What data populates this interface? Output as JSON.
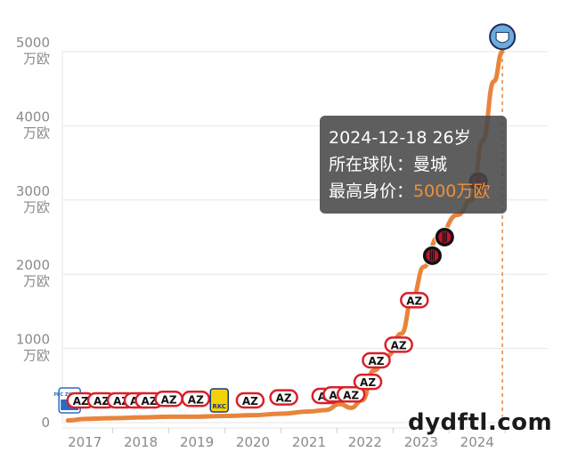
{
  "chart_data": {
    "type": "line",
    "title": "",
    "xlabel": "",
    "ylabel": "",
    "y_ticks": [
      {
        "value": 0,
        "label": "0",
        "unit": ""
      },
      {
        "value": 1000,
        "label": "1000",
        "unit": "万欧"
      },
      {
        "value": 2000,
        "label": "2000",
        "unit": "万欧"
      },
      {
        "value": 3000,
        "label": "3000",
        "unit": "万欧"
      },
      {
        "value": 4000,
        "label": "4000",
        "unit": "万欧"
      },
      {
        "value": 5000,
        "label": "5000",
        "unit": "万欧"
      }
    ],
    "ylim": [
      0,
      5000
    ],
    "x_ticks": [
      "2017",
      "2018",
      "2019",
      "2020",
      "2021",
      "2022",
      "2023",
      "2024"
    ],
    "xlim": [
      2016.6,
      2025.1
    ],
    "grid": true,
    "line_color": "#e8843c",
    "series": [
      {
        "values_unit": "万欧",
        "points": [
          {
            "x": 2016.7,
            "y": 30
          },
          {
            "x": 2017.0,
            "y": 50
          },
          {
            "x": 2017.5,
            "y": 60
          },
          {
            "x": 2018.0,
            "y": 70
          },
          {
            "x": 2018.5,
            "y": 80
          },
          {
            "x": 2019.0,
            "y": 80
          },
          {
            "x": 2019.5,
            "y": 90
          },
          {
            "x": 2020.0,
            "y": 100
          },
          {
            "x": 2020.5,
            "y": 120
          },
          {
            "x": 2021.0,
            "y": 150
          },
          {
            "x": 2021.3,
            "y": 170
          },
          {
            "x": 2021.55,
            "y": 250
          },
          {
            "x": 2021.75,
            "y": 200
          },
          {
            "x": 2021.95,
            "y": 300
          },
          {
            "x": 2022.15,
            "y": 700
          },
          {
            "x": 2022.4,
            "y": 900
          },
          {
            "x": 2022.65,
            "y": 1200
          },
          {
            "x": 2022.85,
            "y": 1700
          },
          {
            "x": 2023.05,
            "y": 2100
          },
          {
            "x": 2023.3,
            "y": 2500
          },
          {
            "x": 2023.65,
            "y": 2800
          },
          {
            "x": 2023.9,
            "y": 3000
          },
          {
            "x": 2024.1,
            "y": 3800
          },
          {
            "x": 2024.3,
            "y": 4600
          },
          {
            "x": 2024.45,
            "y": 5000
          }
        ]
      }
    ],
    "club_markers": [
      {
        "x": 2016.73,
        "y": 300,
        "icon": "pec-zwolle-badge-icon",
        "label": "PEC ZWOLLE"
      },
      {
        "x": 2016.93,
        "y": 300,
        "icon": "az-badge-icon",
        "label": "AZ"
      },
      {
        "x": 2017.3,
        "y": 300,
        "icon": "az-badge-icon",
        "label": "AZ"
      },
      {
        "x": 2017.65,
        "y": 300,
        "icon": "az-badge-icon",
        "label": "AZ"
      },
      {
        "x": 2017.95,
        "y": 300,
        "icon": "az-badge-icon",
        "label": "AZ"
      },
      {
        "x": 2018.15,
        "y": 300,
        "icon": "az-badge-icon",
        "label": "AZ"
      },
      {
        "x": 2018.5,
        "y": 320,
        "icon": "az-badge-icon",
        "label": "AZ"
      },
      {
        "x": 2018.98,
        "y": 320,
        "icon": "az-badge-icon",
        "label": "AZ"
      },
      {
        "x": 2019.4,
        "y": 300,
        "icon": "rkc-badge-icon",
        "label": "RKC"
      },
      {
        "x": 2019.95,
        "y": 300,
        "icon": "az-badge-icon",
        "label": "AZ"
      },
      {
        "x": 2020.55,
        "y": 340,
        "icon": "az-badge-icon",
        "label": "AZ"
      },
      {
        "x": 2021.3,
        "y": 360,
        "icon": "az-badge-icon",
        "label": "AZ"
      },
      {
        "x": 2021.5,
        "y": 380,
        "icon": "az-badge-icon",
        "label": "AZ"
      },
      {
        "x": 2021.75,
        "y": 380,
        "icon": "az-badge-icon",
        "label": "AZ"
      },
      {
        "x": 2022.05,
        "y": 550,
        "icon": "az-badge-icon",
        "label": "AZ"
      },
      {
        "x": 2022.2,
        "y": 840,
        "icon": "az-badge-icon",
        "label": "AZ"
      },
      {
        "x": 2022.6,
        "y": 1050,
        "icon": "az-badge-icon",
        "label": "AZ"
      },
      {
        "x": 2022.88,
        "y": 1650,
        "icon": "az-badge-icon",
        "label": "AZ"
      },
      {
        "x": 2023.2,
        "y": 2250,
        "icon": "ac-milan-badge-icon",
        "label": ""
      },
      {
        "x": 2023.42,
        "y": 2500,
        "icon": "ac-milan-badge-icon",
        "label": ""
      },
      {
        "x": 2024.02,
        "y": 3250,
        "icon": "ac-milan-badge-icon",
        "label": ""
      },
      {
        "x": 2024.45,
        "y": 5200,
        "icon": "man-city-badge-icon",
        "label": ""
      }
    ]
  },
  "tooltip": {
    "date_age": "2024-12-18 26岁",
    "team_label": "所在球队：",
    "team_value": "曼城",
    "value_label": "最高身价：",
    "value_value": "5000万欧"
  },
  "watermark": "dydftl.com",
  "colors": {
    "line": "#e8843c",
    "grid": "#e6e6e6",
    "axis_text": "#8a8a8a",
    "az_red": "#d8202a",
    "milan_red": "#c8102e",
    "city_blue": "#6cabdd"
  }
}
